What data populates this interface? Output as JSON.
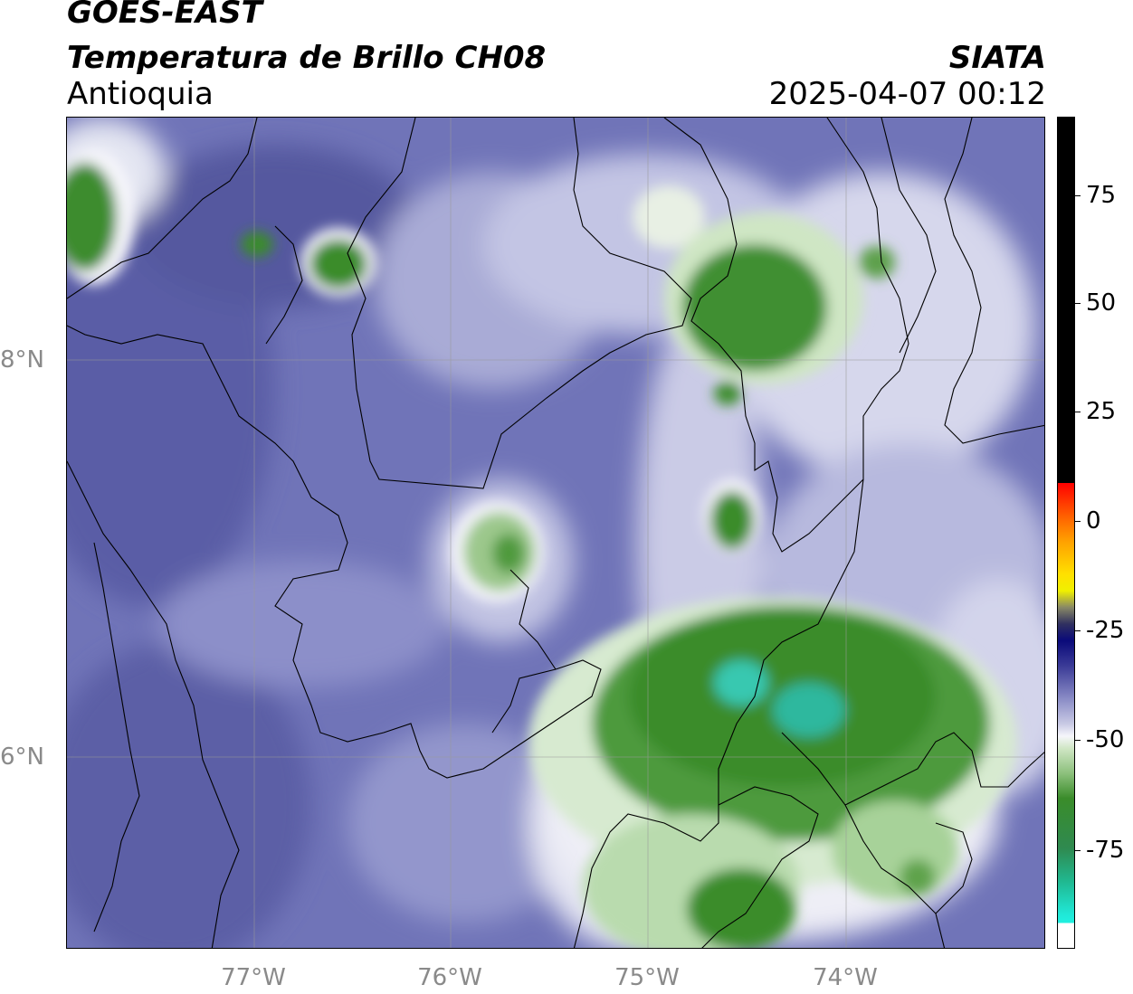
{
  "header": {
    "satellite": "GOES-EAST",
    "product": "Temperatura de Brillo CH08",
    "region": "Antioquia",
    "organization": "SIATA",
    "datetime": "2025-04-07 00:12"
  },
  "axes": {
    "longitude_labels": [
      "77°W",
      "76°W",
      "75°W",
      "74°W"
    ],
    "latitude_labels": [
      "8°N",
      "6°N"
    ]
  },
  "colorbar": {
    "tick_labels": [
      "75",
      "50",
      "25",
      "0",
      "-25",
      "-50",
      "-75"
    ],
    "range": [
      -95,
      90
    ],
    "colors": {
      "cold": "#ffffff",
      "cyan": "#20e0c8",
      "green": "#3a8c2a",
      "light_green": "#cfe6c4",
      "white": "#f4f4f8",
      "lavender": "#a6a8d4",
      "purple": "#5b5ea6",
      "navy": "#0a0a7a",
      "yellow": "#f0f000",
      "orange": "#ff9000",
      "red": "#ff1000",
      "black": "#000000"
    }
  }
}
